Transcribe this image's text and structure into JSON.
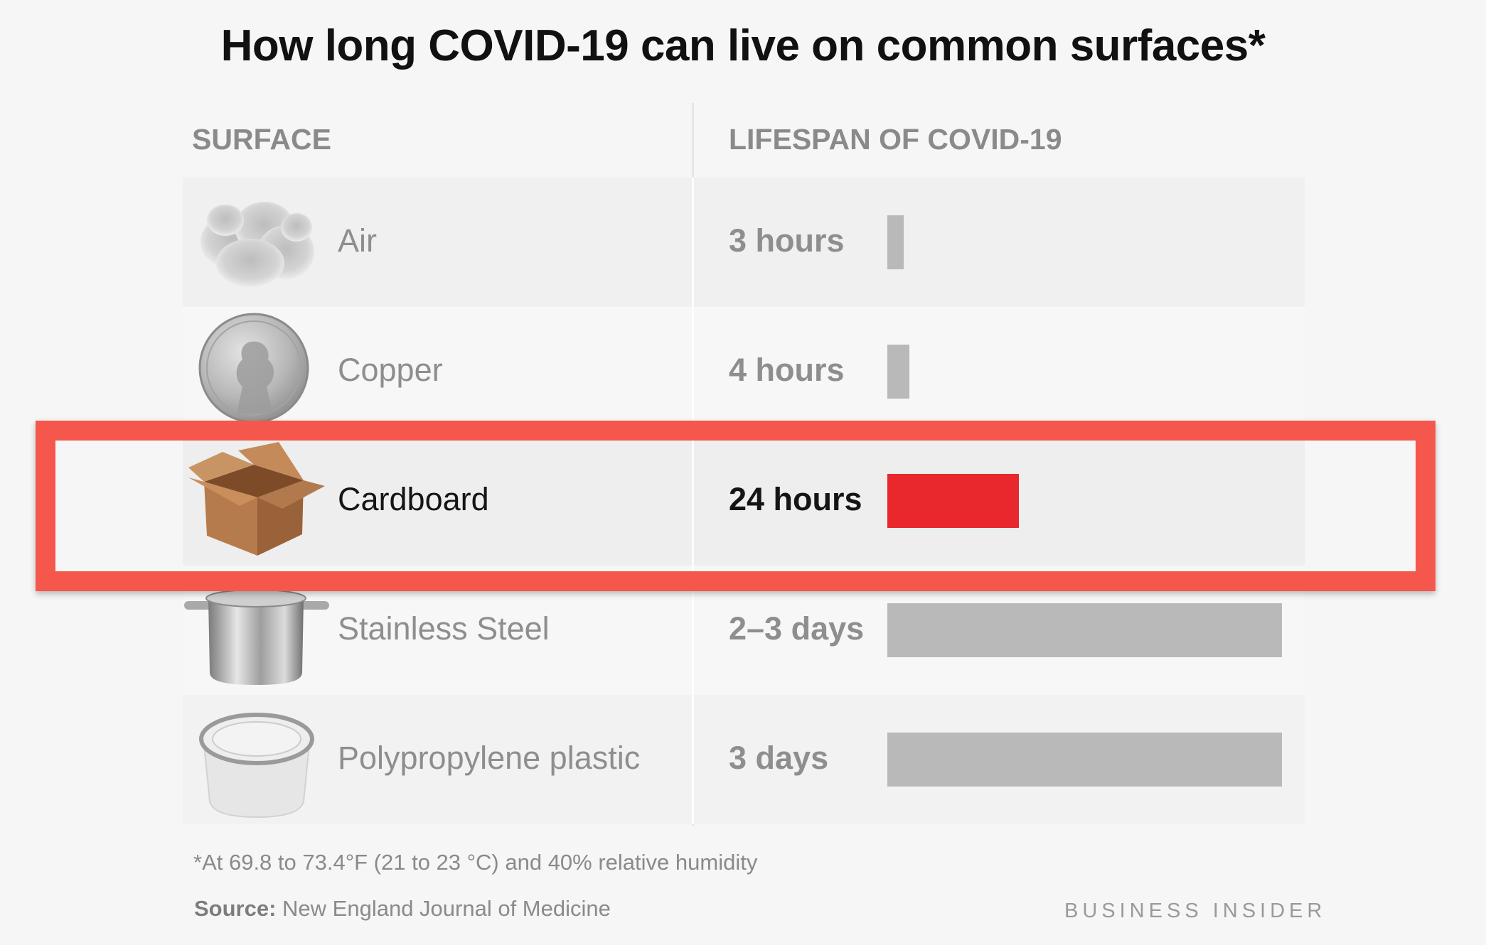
{
  "chart_data": {
    "type": "bar",
    "title": "How long COVID-19 can live on common surfaces*",
    "columns": {
      "surface": "SURFACE",
      "lifespan": "LIFESPAN OF COVID-19"
    },
    "categories": [
      "Air",
      "Copper",
      "Cardboard",
      "Stainless Steel",
      "Polypropylene plastic"
    ],
    "labels": [
      "3 hours",
      "4 hours",
      "24 hours",
      "2–3 days",
      "3 days"
    ],
    "values": [
      3,
      4,
      24,
      72,
      72
    ],
    "unit": "hours",
    "highlight_index": 2,
    "highlight_color": "#e8282c",
    "bar_color": "#b9b9b9",
    "frame_color": "#f5574d",
    "icons": [
      "cloud-icon",
      "penny-icon",
      "cardboard-box-icon",
      "cooking-pot-icon",
      "plastic-container-icon"
    ],
    "xlim": [
      0,
      72
    ],
    "grid": false,
    "legend": "none"
  },
  "footer": {
    "footnote": "*At 69.8 to 73.4°F (21 to 23 °C) and 40% relative humidity",
    "source_key": "Source:",
    "source_value": " New England Journal of Medicine",
    "brand": "BUSINESS INSIDER"
  }
}
